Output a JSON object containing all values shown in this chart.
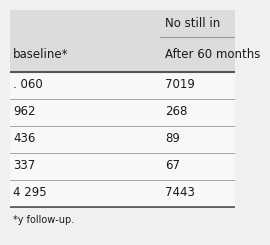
{
  "header1_text": "No still in",
  "header2_col1": "baseline*",
  "header2_col2": "After 60 months",
  "col1_vals": [
    ". 060",
    "962",
    "436",
    "337",
    "4 295"
  ],
  "col2_vals": [
    "7019",
    "268",
    "89",
    "67",
    "7443"
  ],
  "footer": "*y follow-up.",
  "bg_color": "#f0f0f0",
  "header_bg": "#dcdcdc",
  "body_bg": "#f8f8f8",
  "line_color": "#999999",
  "thick_line_color": "#555555",
  "text_color": "#1a1a1a",
  "font_size": 8.5,
  "header_font_size": 8.5,
  "footer_font_size": 7.0
}
